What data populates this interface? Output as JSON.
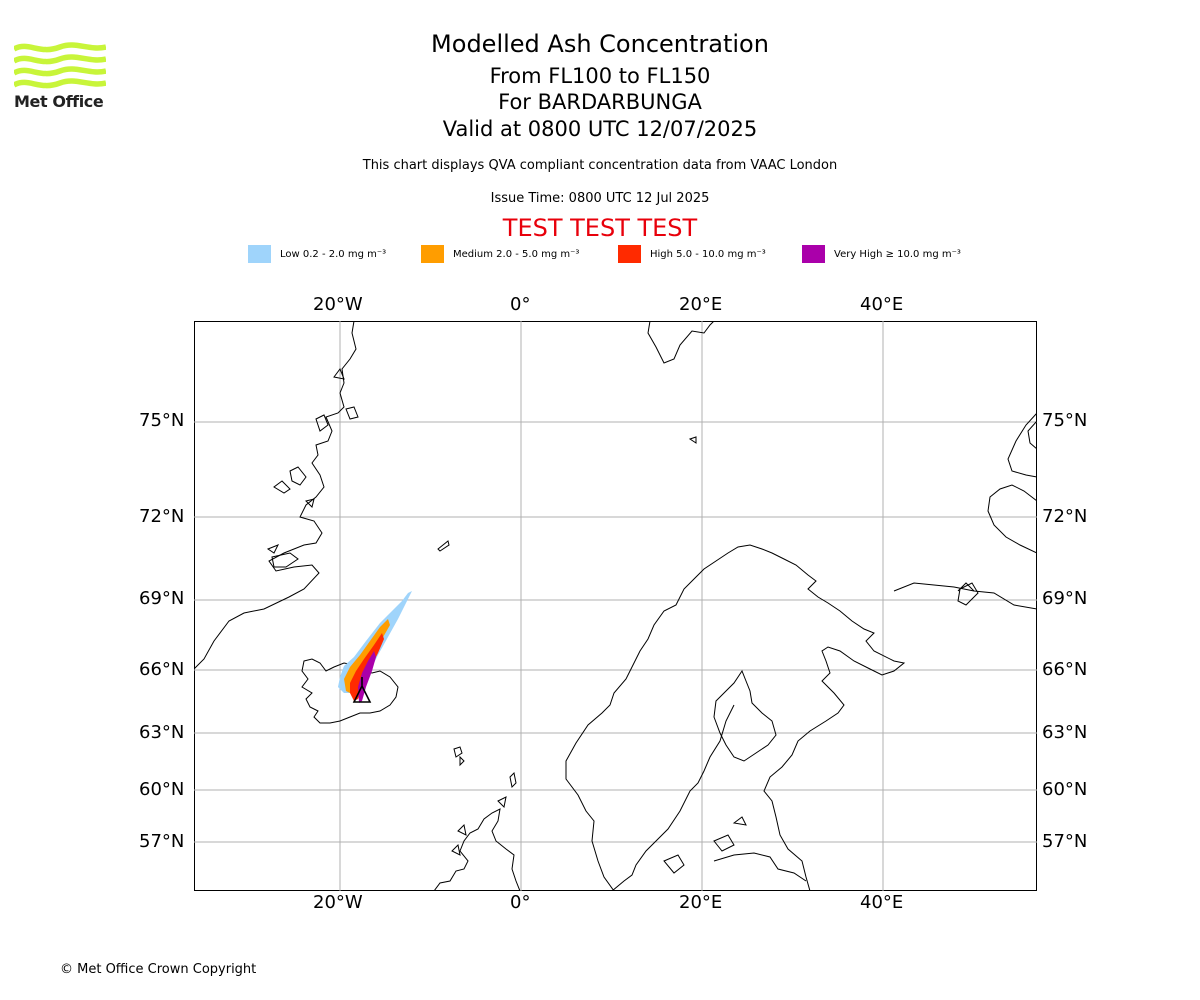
{
  "header": {
    "title": "Modelled Ash Concentration",
    "level": "From FL100 to FL150",
    "volcano": "For BARDARBUNGA",
    "valid": "Valid at 0800 UTC 12/07/2025",
    "description": "This chart displays QVA compliant concentration data from VAAC London",
    "issue_time": "Issue Time: 0800 UTC 12 Jul 2025",
    "test_banner": "TEST TEST TEST"
  },
  "logo": {
    "text": "Met Office",
    "color": "#c8f53a"
  },
  "legend": [
    {
      "label": "Low 0.2 - 2.0 mg m⁻³",
      "color": "#9fd4fb"
    },
    {
      "label": "Medium 2.0 - 5.0 mg m⁻³",
      "color": "#ff9d00"
    },
    {
      "label": "High 5.0 - 10.0 mg m⁻³",
      "color": "#ff2a00"
    },
    {
      "label": "Very High  ≥  10.0 mg m⁻³",
      "color": "#aa00aa"
    }
  ],
  "map": {
    "lon_labels": [
      "20°W",
      "0°",
      "20°E",
      "40°E"
    ],
    "lat_labels": [
      "75°N",
      "72°N",
      "69°N",
      "66°N",
      "63°N",
      "60°N",
      "57°N"
    ]
  },
  "footer": {
    "copyright": "© Met Office Crown Copyright"
  }
}
